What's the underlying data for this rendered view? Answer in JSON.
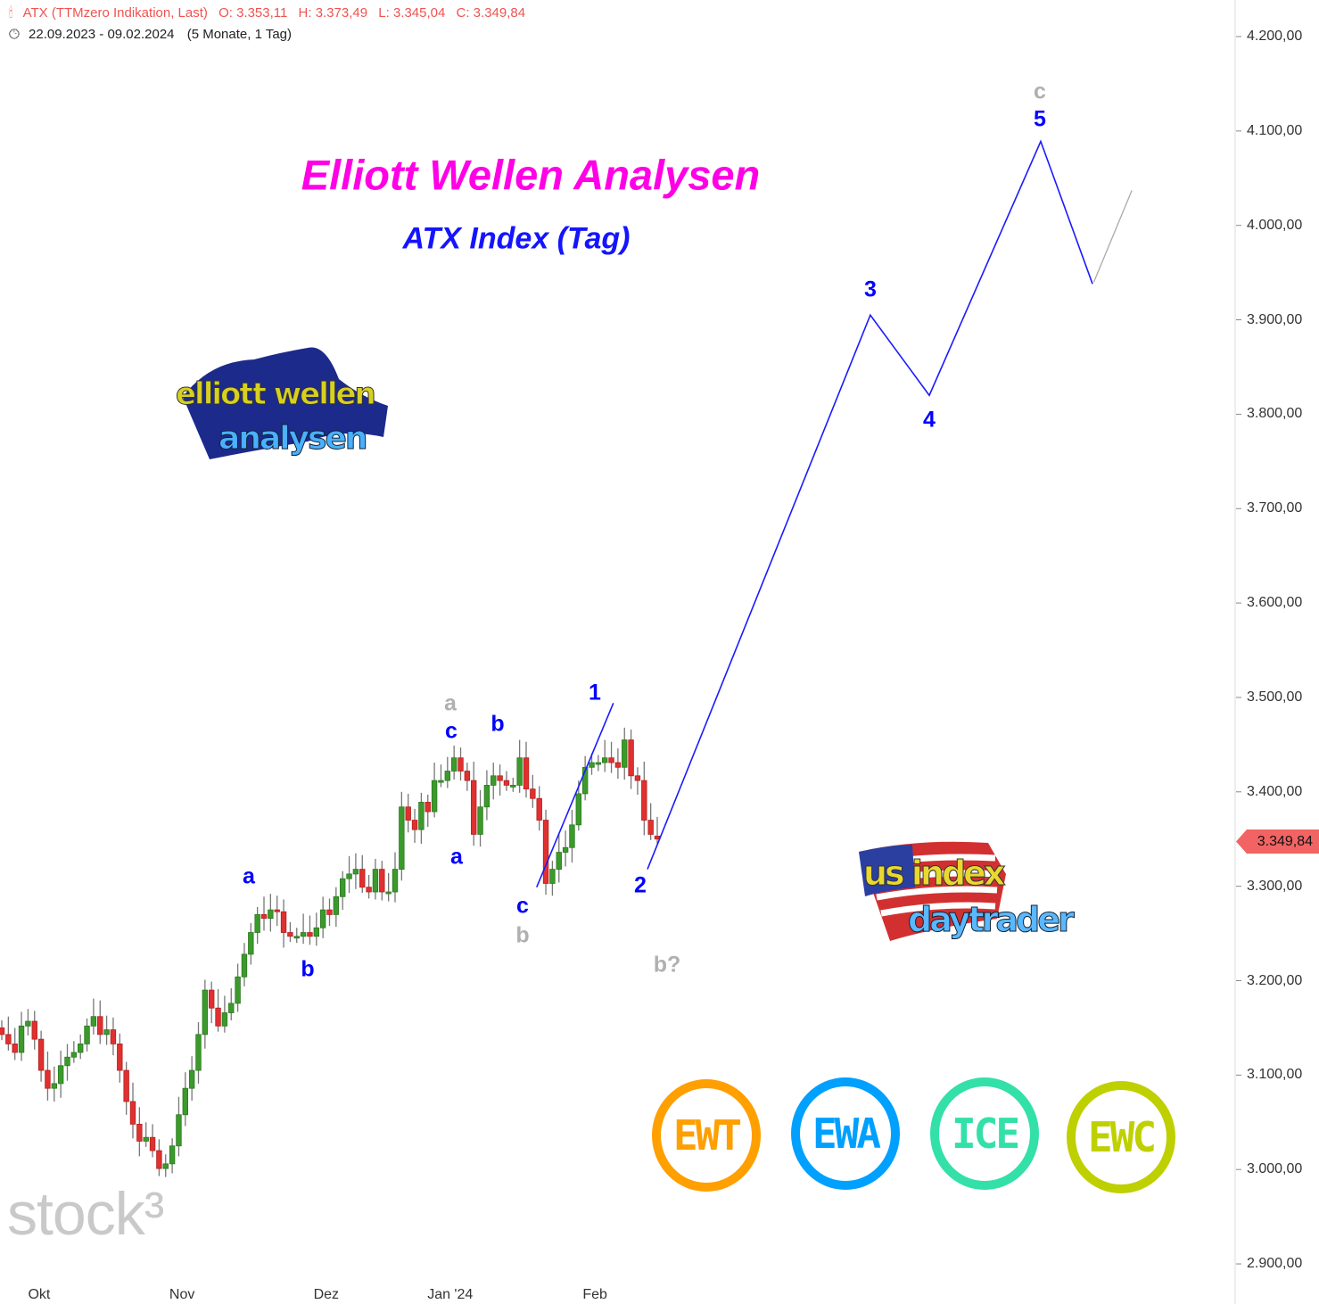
{
  "header": {
    "symbol": "ATX (TTMzero Indikation, Last)",
    "open": "O: 3.353,11",
    "high": "H: 3.373,49",
    "low": "L: 3.345,04",
    "close": "C: 3.349,84",
    "range": "22.09.2023 - 09.02.2024",
    "duration": "(5 Monate, 1 Tag)",
    "icons": {
      "chart": "candlestick-icon",
      "range": "clock-icon"
    }
  },
  "title": "Elliott Wellen Analysen",
  "subtitle": "ATX Index (Tag)",
  "current_price_tag": "3.349,84",
  "watermark": "stock³",
  "logos": {
    "elliott": {
      "line1": "elliott wellen",
      "line2": "analysen"
    },
    "us": {
      "line1": "us index",
      "line2": "daytrader"
    }
  },
  "badges": [
    {
      "text": "EWT",
      "color": "#ff9f00"
    },
    {
      "text": "EWA",
      "color": "#00a0ff"
    },
    {
      "text": "ICE",
      "color": "#33e0a8"
    },
    {
      "text": "EWC",
      "color": "#bfd000"
    }
  ],
  "wave_labels": [
    {
      "text": "a",
      "color": "#0000ff"
    },
    {
      "text": "b",
      "color": "#0000ff"
    },
    {
      "text": "a",
      "color": "#b0b0b0"
    },
    {
      "text": "c",
      "color": "#0000ff"
    },
    {
      "text": "b",
      "color": "#0000ff"
    },
    {
      "text": "a",
      "color": "#0000ff"
    },
    {
      "text": "1",
      "color": "#0000ff"
    },
    {
      "text": "c",
      "color": "#0000ff"
    },
    {
      "text": "b",
      "color": "#b0b0b0"
    },
    {
      "text": "2",
      "color": "#0000ff"
    },
    {
      "text": "b?",
      "color": "#b0b0b0"
    },
    {
      "text": "3",
      "color": "#0000ff"
    },
    {
      "text": "4",
      "color": "#0000ff"
    },
    {
      "text": "c",
      "color": "#b0b0b0"
    },
    {
      "text": "5",
      "color": "#0000ff"
    }
  ],
  "chart_data": {
    "type": "candlestick",
    "ylim": [
      2900,
      4200
    ],
    "y_ticks": [
      "2.900,00",
      "3.000,00",
      "3.100,00",
      "3.200,00",
      "3.300,00",
      "3.400,00",
      "3.500,00",
      "3.600,00",
      "3.700,00",
      "3.800,00",
      "3.900,00",
      "4.000,00",
      "4.100,00",
      "4.200,00"
    ],
    "y_tick_values": [
      2900,
      3000,
      3100,
      3200,
      3300,
      3400,
      3500,
      3600,
      3700,
      3800,
      3900,
      4000,
      4100,
      4200
    ],
    "x_ticks": [
      {
        "label": "Okt",
        "bar": 5.7
      },
      {
        "label": "Nov",
        "bar": 27.5
      },
      {
        "label": "Dez",
        "bar": 49.5
      },
      {
        "label": "Jan '24",
        "bar": 68.4
      },
      {
        "label": "Feb",
        "bar": 90.5
      }
    ],
    "colors": {
      "up": "#3c9a2c",
      "down": "#e03030",
      "wick": "#777777",
      "projection": "#1a1aff",
      "alt_projection": "#aaaaaa"
    },
    "close": [
      3143,
      3133,
      3124,
      3152,
      3157,
      3138,
      3105,
      3086,
      3091,
      3110,
      3119,
      3124,
      3133,
      3152,
      3162,
      3143,
      3148,
      3133,
      3105,
      3072,
      3048,
      3030,
      3034,
      3020,
      3001,
      3006,
      3025,
      3058,
      3086,
      3105,
      3143,
      3190,
      3171,
      3152,
      3166,
      3176,
      3204,
      3228,
      3251,
      3270,
      3266,
      3275,
      3273,
      3251,
      3247,
      3247,
      3251,
      3247,
      3256,
      3275,
      3270,
      3289,
      3308,
      3313,
      3318,
      3299,
      3294,
      3318,
      3294,
      3294,
      3318,
      3384,
      3370,
      3360,
      3389,
      3379,
      3412,
      3412,
      3422,
      3436,
      3422,
      3412,
      3355,
      3384,
      3407,
      3417,
      3412,
      3407,
      3407,
      3436,
      3403,
      3393,
      3370,
      3303,
      3318,
      3336,
      3341,
      3365,
      3398,
      3426,
      3431,
      3431,
      3436,
      3431,
      3426,
      3455,
      3417,
      3412,
      3370,
      3355,
      3350
    ],
    "first_open": 3150,
    "last_bar": {
      "open": 3353.11,
      "high": 3373.49,
      "low": 3345.04,
      "close": 3349.84
    },
    "projection": [
      {
        "bar": 81.6,
        "price": 3299
      },
      {
        "bar": 93.3,
        "price": 3494
      }
    ],
    "projection2": [
      {
        "bar": 98.5,
        "price": 3318
      },
      {
        "bar": 132.5,
        "price": 3905
      },
      {
        "bar": 141.5,
        "price": 3820
      },
      {
        "bar": 158.5,
        "price": 4089
      },
      {
        "bar": 166.4,
        "price": 3938
      }
    ],
    "alt_projection": [
      {
        "bar": 166.6,
        "price": 3940
      },
      {
        "bar": 172.4,
        "price": 4037
      }
    ]
  }
}
